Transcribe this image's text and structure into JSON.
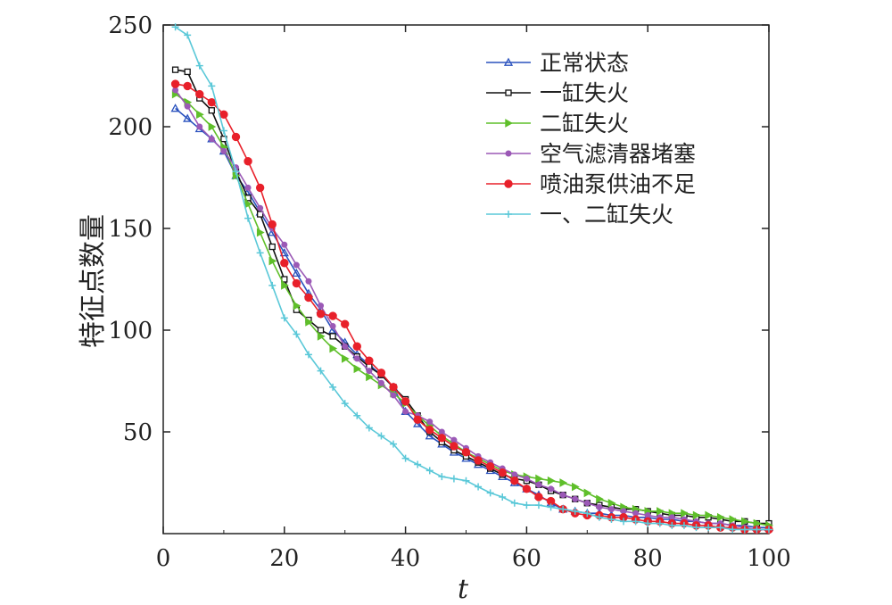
{
  "chart_data": {
    "type": "line",
    "title": "",
    "xlabel": "t",
    "ylabel": "特征点数量",
    "xlim": [
      0,
      100
    ],
    "ylim": [
      0,
      250
    ],
    "xticks": [
      0,
      20,
      40,
      60,
      80,
      100
    ],
    "yticks": [
      50,
      100,
      150,
      200,
      250
    ],
    "grid": false,
    "legend_position": "top-right",
    "series": [
      {
        "name": "正常状态",
        "color": "#2a52be",
        "marker": "triangle",
        "points": [
          [
            2,
            209
          ],
          [
            4,
            204
          ],
          [
            6,
            199
          ],
          [
            8,
            194
          ],
          [
            10,
            188
          ],
          [
            12,
            176
          ],
          [
            14,
            168
          ],
          [
            16,
            158
          ],
          [
            18,
            148
          ],
          [
            20,
            138
          ],
          [
            22,
            128
          ],
          [
            24,
            118
          ],
          [
            26,
            110
          ],
          [
            28,
            100
          ],
          [
            30,
            94
          ],
          [
            32,
            88
          ],
          [
            34,
            83
          ],
          [
            36,
            78
          ],
          [
            38,
            72
          ],
          [
            40,
            60
          ],
          [
            42,
            54
          ],
          [
            44,
            48
          ],
          [
            46,
            44
          ],
          [
            48,
            40
          ],
          [
            50,
            37
          ],
          [
            52,
            34
          ],
          [
            54,
            31
          ],
          [
            56,
            28
          ],
          [
            58,
            25
          ],
          [
            60,
            22
          ],
          [
            62,
            19
          ],
          [
            64,
            15
          ],
          [
            66,
            12
          ],
          [
            68,
            11
          ],
          [
            70,
            10
          ],
          [
            72,
            10
          ],
          [
            74,
            9
          ],
          [
            76,
            9
          ],
          [
            78,
            8
          ],
          [
            80,
            8
          ],
          [
            82,
            7
          ],
          [
            84,
            7
          ],
          [
            86,
            6
          ],
          [
            88,
            6
          ],
          [
            90,
            5
          ],
          [
            92,
            5
          ],
          [
            94,
            4
          ],
          [
            96,
            4
          ],
          [
            98,
            3
          ],
          [
            100,
            3
          ]
        ]
      },
      {
        "name": "一缸失火",
        "color": "#111111",
        "marker": "square",
        "points": [
          [
            2,
            228
          ],
          [
            4,
            227
          ],
          [
            6,
            214
          ],
          [
            8,
            208
          ],
          [
            10,
            194
          ],
          [
            12,
            178
          ],
          [
            14,
            165
          ],
          [
            16,
            157
          ],
          [
            18,
            141
          ],
          [
            20,
            125
          ],
          [
            22,
            110
          ],
          [
            24,
            105
          ],
          [
            26,
            100
          ],
          [
            28,
            97
          ],
          [
            30,
            92
          ],
          [
            32,
            87
          ],
          [
            34,
            82
          ],
          [
            36,
            78
          ],
          [
            38,
            72
          ],
          [
            40,
            66
          ],
          [
            42,
            58
          ],
          [
            44,
            50
          ],
          [
            46,
            45
          ],
          [
            48,
            41
          ],
          [
            50,
            38
          ],
          [
            52,
            35
          ],
          [
            54,
            32
          ],
          [
            56,
            29
          ],
          [
            58,
            27
          ],
          [
            60,
            26
          ],
          [
            62,
            24
          ],
          [
            64,
            21
          ],
          [
            66,
            19
          ],
          [
            68,
            17
          ],
          [
            70,
            15
          ],
          [
            72,
            14
          ],
          [
            74,
            13
          ],
          [
            76,
            12
          ],
          [
            78,
            12
          ],
          [
            80,
            11
          ],
          [
            82,
            10
          ],
          [
            84,
            9
          ],
          [
            86,
            9
          ],
          [
            88,
            8
          ],
          [
            90,
            8
          ],
          [
            92,
            7
          ],
          [
            94,
            6
          ],
          [
            96,
            6
          ],
          [
            98,
            5
          ],
          [
            100,
            5
          ]
        ]
      },
      {
        "name": "二缸失火",
        "color": "#5fbf2a",
        "marker": "triangle-right",
        "points": [
          [
            2,
            216
          ],
          [
            4,
            212
          ],
          [
            6,
            206
          ],
          [
            8,
            200
          ],
          [
            10,
            190
          ],
          [
            12,
            176
          ],
          [
            14,
            162
          ],
          [
            16,
            148
          ],
          [
            18,
            134
          ],
          [
            20,
            122
          ],
          [
            22,
            112
          ],
          [
            24,
            104
          ],
          [
            26,
            97
          ],
          [
            28,
            91
          ],
          [
            30,
            86
          ],
          [
            32,
            81
          ],
          [
            34,
            77
          ],
          [
            36,
            73
          ],
          [
            38,
            69
          ],
          [
            40,
            64
          ],
          [
            42,
            58
          ],
          [
            44,
            53
          ],
          [
            46,
            48
          ],
          [
            48,
            44
          ],
          [
            50,
            40
          ],
          [
            52,
            37
          ],
          [
            54,
            34
          ],
          [
            56,
            31
          ],
          [
            58,
            29
          ],
          [
            60,
            28
          ],
          [
            62,
            27
          ],
          [
            64,
            26
          ],
          [
            66,
            25
          ],
          [
            68,
            23
          ],
          [
            70,
            20
          ],
          [
            72,
            17
          ],
          [
            74,
            15
          ],
          [
            76,
            13
          ],
          [
            78,
            12
          ],
          [
            80,
            11
          ],
          [
            82,
            11
          ],
          [
            84,
            10
          ],
          [
            86,
            10
          ],
          [
            88,
            9
          ],
          [
            90,
            9
          ],
          [
            92,
            8
          ],
          [
            94,
            7
          ],
          [
            96,
            6
          ],
          [
            98,
            5
          ],
          [
            100,
            4
          ]
        ]
      },
      {
        "name": "空气滤清器堵塞",
        "color": "#9b59b6",
        "marker": "star",
        "points": [
          [
            2,
            218
          ],
          [
            4,
            210
          ],
          [
            6,
            200
          ],
          [
            8,
            194
          ],
          [
            10,
            188
          ],
          [
            12,
            180
          ],
          [
            14,
            170
          ],
          [
            16,
            160
          ],
          [
            18,
            150
          ],
          [
            20,
            142
          ],
          [
            22,
            132
          ],
          [
            24,
            124
          ],
          [
            26,
            112
          ],
          [
            28,
            102
          ],
          [
            30,
            92
          ],
          [
            32,
            86
          ],
          [
            34,
            80
          ],
          [
            36,
            74
          ],
          [
            38,
            68
          ],
          [
            40,
            60
          ],
          [
            42,
            58
          ],
          [
            44,
            55
          ],
          [
            46,
            50
          ],
          [
            48,
            46
          ],
          [
            50,
            42
          ],
          [
            52,
            38
          ],
          [
            54,
            35
          ],
          [
            56,
            32
          ],
          [
            58,
            29
          ],
          [
            60,
            27
          ],
          [
            62,
            24
          ],
          [
            64,
            22
          ],
          [
            66,
            19
          ],
          [
            68,
            17
          ],
          [
            70,
            15
          ],
          [
            72,
            13
          ],
          [
            74,
            12
          ],
          [
            76,
            11
          ],
          [
            78,
            10
          ],
          [
            80,
            9
          ],
          [
            82,
            8
          ],
          [
            84,
            8
          ],
          [
            86,
            7
          ],
          [
            88,
            6
          ],
          [
            90,
            5
          ],
          [
            92,
            5
          ],
          [
            94,
            4
          ],
          [
            96,
            3
          ],
          [
            98,
            2
          ],
          [
            100,
            2
          ]
        ]
      },
      {
        "name": "喷油泵供油不足",
        "color": "#e8202a",
        "marker": "circle",
        "points": [
          [
            2,
            221
          ],
          [
            4,
            220
          ],
          [
            6,
            216
          ],
          [
            8,
            212
          ],
          [
            10,
            206
          ],
          [
            12,
            195
          ],
          [
            14,
            183
          ],
          [
            16,
            170
          ],
          [
            18,
            152
          ],
          [
            20,
            133
          ],
          [
            22,
            123
          ],
          [
            24,
            116
          ],
          [
            26,
            108
          ],
          [
            28,
            107
          ],
          [
            30,
            103
          ],
          [
            32,
            92
          ],
          [
            34,
            85
          ],
          [
            36,
            79
          ],
          [
            38,
            72
          ],
          [
            40,
            65
          ],
          [
            42,
            56
          ],
          [
            44,
            51
          ],
          [
            46,
            47
          ],
          [
            48,
            43
          ],
          [
            50,
            40
          ],
          [
            52,
            36
          ],
          [
            54,
            33
          ],
          [
            56,
            30
          ],
          [
            58,
            26
          ],
          [
            60,
            22
          ],
          [
            62,
            18
          ],
          [
            64,
            16
          ],
          [
            66,
            12
          ],
          [
            68,
            10
          ],
          [
            70,
            9
          ],
          [
            72,
            9
          ],
          [
            74,
            8
          ],
          [
            76,
            8
          ],
          [
            78,
            7
          ],
          [
            80,
            6
          ],
          [
            82,
            6
          ],
          [
            84,
            5
          ],
          [
            86,
            5
          ],
          [
            88,
            4
          ],
          [
            90,
            4
          ],
          [
            92,
            3
          ],
          [
            94,
            3
          ],
          [
            96,
            2
          ],
          [
            98,
            2
          ],
          [
            100,
            2
          ]
        ]
      },
      {
        "name": "一、二缸失火",
        "color": "#5ac8d8",
        "marker": "plus",
        "points": [
          [
            2,
            249
          ],
          [
            4,
            245
          ],
          [
            6,
            230
          ],
          [
            8,
            220
          ],
          [
            10,
            198
          ],
          [
            12,
            178
          ],
          [
            14,
            155
          ],
          [
            16,
            138
          ],
          [
            18,
            122
          ],
          [
            20,
            106
          ],
          [
            22,
            98
          ],
          [
            24,
            88
          ],
          [
            26,
            80
          ],
          [
            28,
            72
          ],
          [
            30,
            64
          ],
          [
            32,
            58
          ],
          [
            34,
            52
          ],
          [
            36,
            48
          ],
          [
            38,
            44
          ],
          [
            40,
            37
          ],
          [
            42,
            34
          ],
          [
            44,
            31
          ],
          [
            46,
            28
          ],
          [
            48,
            27
          ],
          [
            50,
            26
          ],
          [
            52,
            23
          ],
          [
            54,
            20
          ],
          [
            56,
            18
          ],
          [
            58,
            15
          ],
          [
            60,
            14
          ],
          [
            62,
            14
          ],
          [
            64,
            13
          ],
          [
            66,
            12
          ],
          [
            68,
            11
          ],
          [
            70,
            10
          ],
          [
            72,
            8
          ],
          [
            74,
            7
          ],
          [
            76,
            6
          ],
          [
            78,
            6
          ],
          [
            80,
            5
          ],
          [
            82,
            5
          ],
          [
            84,
            4
          ],
          [
            86,
            4
          ],
          [
            88,
            3
          ],
          [
            90,
            3
          ],
          [
            92,
            3
          ],
          [
            94,
            2
          ],
          [
            96,
            2
          ],
          [
            98,
            2
          ],
          [
            100,
            2
          ]
        ]
      }
    ]
  }
}
